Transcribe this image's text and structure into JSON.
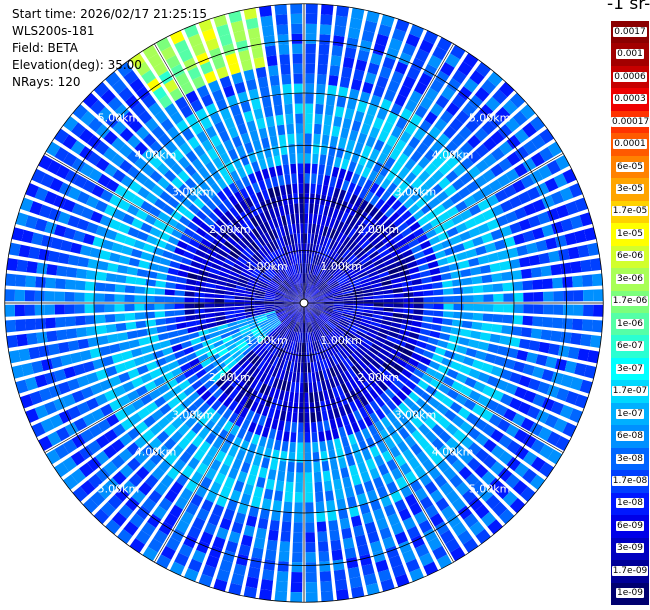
{
  "header": {
    "start_time": "Start time: 2026/02/17 21:25:15",
    "instrument": "WLS200s-181",
    "field": "Field: BETA",
    "elevation": "Elevation(deg): 35.00",
    "nrays": "NRays: 120"
  },
  "colorbar": {
    "units_text": "-1 sr-",
    "labels": [
      "0.0017",
      "0.001",
      "0.0006",
      "0.0003",
      "0.00017",
      "0.0001",
      "6e-05",
      "3e-05",
      "1.7e-05",
      "1e-05",
      "6e-06",
      "3e-06",
      "1.7e-06",
      "1e-06",
      "6e-07",
      "3e-07",
      "1.7e-07",
      "1e-07",
      "6e-08",
      "3e-08",
      "1.7e-08",
      "1e-08",
      "6e-09",
      "3e-09",
      "1.7e-09",
      "1e-09"
    ],
    "colors": [
      "#8b0000",
      "#a20000",
      "#c60000",
      "#ee0000",
      "#ff3300",
      "#ff5a00",
      "#ff8200",
      "#ffa500",
      "#ffd200",
      "#ffff00",
      "#d2ff2d",
      "#a8ff57",
      "#7cff7c",
      "#55ffa7",
      "#2affd2",
      "#00ffff",
      "#00d8ff",
      "#00b0ff",
      "#0090ff",
      "#0066ff",
      "#0040ff",
      "#0018ff",
      "#0000e8",
      "#0000c0",
      "#000098",
      "#000070"
    ]
  },
  "chart_data": {
    "type": "heatmap",
    "projection": "polar (PPI scan)",
    "field": "BETA",
    "elevation_deg": 35.0,
    "n_rays": 120,
    "range_rings_km": [
      1.0,
      2.0,
      3.0,
      4.0,
      5.0
    ],
    "range_ring_labels": [
      "1.00km",
      "2.00km",
      "3.00km",
      "4.00km",
      "5.00km"
    ],
    "max_range_km": 5.7,
    "scale": "log",
    "value_range": [
      1e-09,
      0.0017
    ],
    "dominant_value": "1e-08 to 6e-08",
    "features": [
      {
        "description": "dense blue core",
        "range_km": [
          0,
          2.2
        ],
        "approx_value": 1e-08
      },
      {
        "description": "cyan ring band",
        "range_km": [
          2.5,
          4.2
        ],
        "approx_value": 1.7e-07
      },
      {
        "description": "green/yellow patch",
        "azimuth_deg": [
          325,
          345
        ],
        "range_km": [
          4.5,
          5.7
        ],
        "approx_value": 3e-06
      },
      {
        "description": "cyan wedge",
        "azimuth_deg": [
          230,
          250
        ],
        "range_km": [
          0.5,
          2.2
        ],
        "approx_value": 1e-07
      }
    ]
  }
}
